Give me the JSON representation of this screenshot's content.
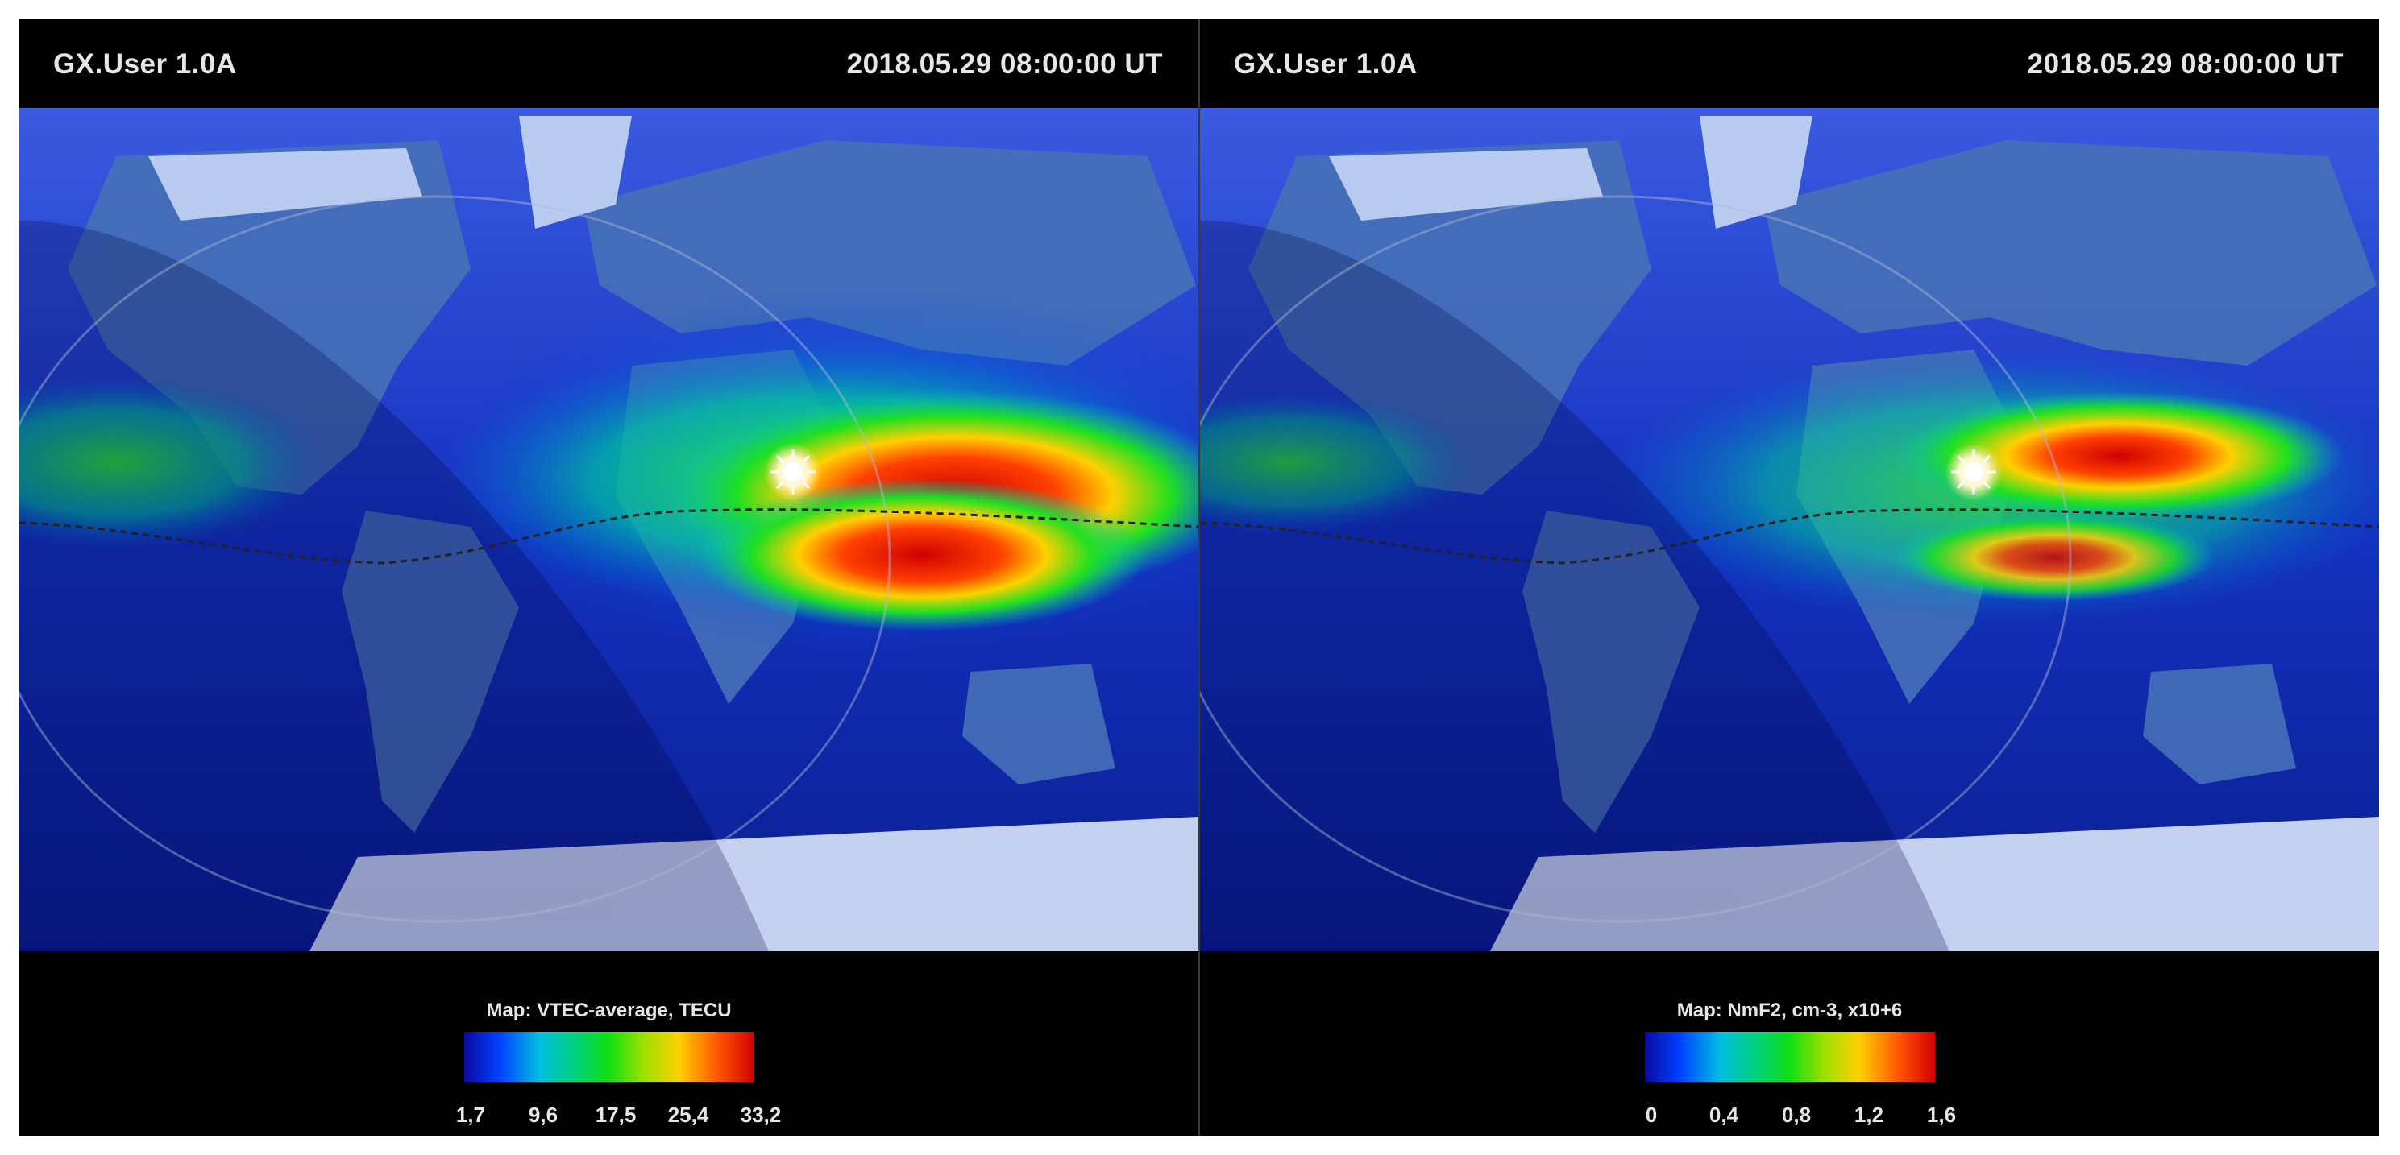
{
  "panels": [
    {
      "app_title": "GX.User 1.0A",
      "timestamp": "2018.05.29 08:00:00 UT",
      "legend": {
        "title": "Map: VTEC-average, TECU",
        "ticks": [
          "1,7",
          "9,6",
          "17,5",
          "25,4",
          "33,2"
        ]
      }
    },
    {
      "app_title": "GX.User 1.0A",
      "timestamp": "2018.05.29 08:00:00 UT",
      "legend": {
        "title": "Map: NmF2, cm-3, x10+6",
        "ticks": [
          "0",
          "0,4",
          "0,8",
          "1,2",
          "1,6"
        ]
      }
    }
  ],
  "colors": {
    "ocean": "#1030c0",
    "land": "#3a6aa8",
    "ice": "#d8e4f8",
    "high": "#d00000",
    "mid": "#10e010",
    "low": "#0a0aa0"
  },
  "icons": {
    "sun": "sun-icon",
    "equator": "magnetic-equator-line",
    "terminator": "day-night-terminator"
  }
}
